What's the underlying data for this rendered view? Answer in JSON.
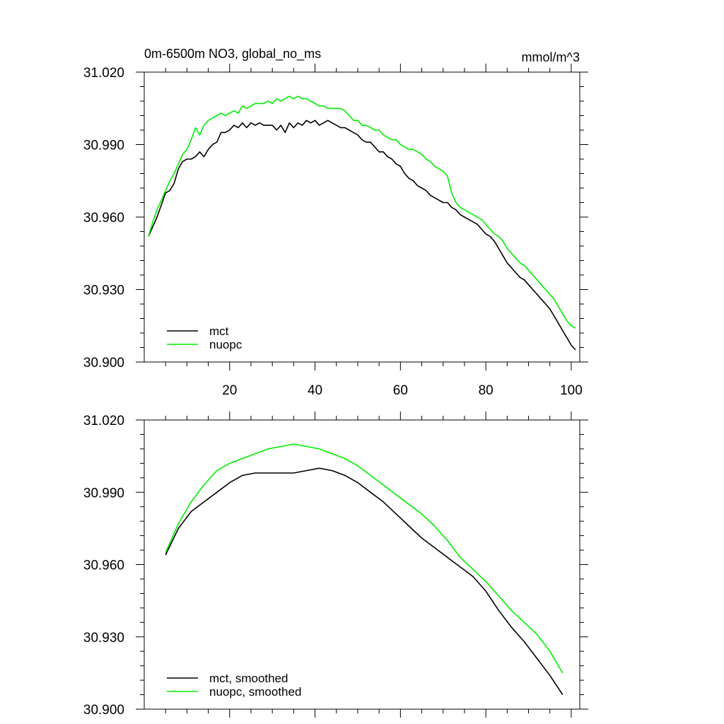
{
  "page": {
    "title": "0m-6500m NO3, global_no_ms",
    "units": "mmol/m^3"
  },
  "chart_data": [
    {
      "type": "line",
      "title": "0m-6500m NO3, global_no_ms",
      "units_label": "mmol/m^3",
      "xlabel": "",
      "ylabel": "",
      "xlim": [
        0,
        102
      ],
      "ylim": [
        30.9,
        31.02
      ],
      "xticks": [
        20,
        40,
        60,
        80,
        100
      ],
      "xtick_labels": [
        "20",
        "40",
        "60",
        "80",
        "100"
      ],
      "yticks": [
        30.9,
        30.93,
        30.96,
        30.99,
        31.02
      ],
      "ytick_labels": [
        "30.900",
        "30.930",
        "30.960",
        "30.990",
        "31.020"
      ],
      "show_xtick_labels": true,
      "legend_position": "bottom-left",
      "series": [
        {
          "name": "mct",
          "color": "#000000",
          "x": [
            1,
            2,
            3,
            4,
            5,
            6,
            7,
            8,
            9,
            10,
            11,
            12,
            13,
            14,
            15,
            16,
            17,
            18,
            19,
            20,
            21,
            22,
            23,
            24,
            25,
            26,
            27,
            28,
            29,
            30,
            31,
            32,
            33,
            34,
            35,
            36,
            37,
            38,
            39,
            40,
            41,
            42,
            43,
            44,
            45,
            46,
            47,
            48,
            49,
            50,
            51,
            52,
            53,
            54,
            55,
            56,
            57,
            58,
            59,
            60,
            61,
            62,
            63,
            64,
            65,
            66,
            67,
            68,
            69,
            70,
            71,
            72,
            73,
            74,
            75,
            76,
            77,
            78,
            79,
            80,
            81,
            82,
            83,
            84,
            85,
            86,
            87,
            88,
            89,
            90,
            91,
            92,
            93,
            94,
            95,
            96,
            97,
            98,
            99,
            100,
            101
          ],
          "y": [
            30.952,
            30.956,
            30.96,
            30.965,
            30.97,
            30.971,
            30.974,
            30.98,
            30.983,
            30.984,
            30.984,
            30.985,
            30.987,
            30.985,
            30.988,
            30.99,
            30.991,
            30.995,
            30.995,
            30.996,
            30.998,
            30.997,
            30.999,
            30.997,
            30.999,
            30.998,
            30.999,
            30.998,
            30.998,
            30.998,
            30.996,
            30.998,
            30.995,
            30.999,
            30.997,
            30.999,
            30.998,
            31.0,
            30.999,
            31.0,
            30.998,
            30.999,
            31.0,
            30.999,
            30.998,
            30.997,
            30.997,
            30.996,
            30.995,
            30.994,
            30.992,
            30.991,
            30.991,
            30.989,
            30.987,
            30.987,
            30.985,
            30.984,
            30.982,
            30.981,
            30.978,
            30.976,
            30.975,
            30.973,
            30.972,
            30.971,
            30.969,
            30.968,
            30.967,
            30.966,
            30.966,
            30.964,
            30.963,
            30.961,
            30.96,
            30.959,
            30.958,
            30.957,
            30.955,
            30.953,
            30.952,
            30.95,
            30.947,
            30.944,
            30.941,
            30.939,
            30.937,
            30.935,
            30.934,
            30.932,
            30.93,
            30.928,
            30.926,
            30.924,
            30.922,
            30.919,
            30.916,
            30.913,
            30.91,
            30.907,
            30.905
          ]
        },
        {
          "name": "nuopc",
          "color": "#00ee00",
          "x": [
            1,
            2,
            3,
            4,
            5,
            6,
            7,
            8,
            9,
            10,
            11,
            12,
            13,
            14,
            15,
            16,
            17,
            18,
            19,
            20,
            21,
            22,
            23,
            24,
            25,
            26,
            27,
            28,
            29,
            30,
            31,
            32,
            33,
            34,
            35,
            36,
            37,
            38,
            39,
            40,
            41,
            42,
            43,
            44,
            45,
            46,
            47,
            48,
            49,
            50,
            51,
            52,
            53,
            54,
            55,
            56,
            57,
            58,
            59,
            60,
            61,
            62,
            63,
            64,
            65,
            66,
            67,
            68,
            69,
            70,
            71,
            72,
            73,
            74,
            75,
            76,
            77,
            78,
            79,
            80,
            81,
            82,
            83,
            84,
            85,
            86,
            87,
            88,
            89,
            90,
            91,
            92,
            93,
            94,
            95,
            96,
            97,
            98,
            99,
            100,
            101
          ],
          "y": [
            30.952,
            30.958,
            30.963,
            30.967,
            30.971,
            30.975,
            30.978,
            30.982,
            30.986,
            30.988,
            30.992,
            30.997,
            30.994,
            30.998,
            31.0,
            31.001,
            31.002,
            31.003,
            31.002,
            31.003,
            31.004,
            31.003,
            31.006,
            31.005,
            31.006,
            31.007,
            31.007,
            31.007,
            31.008,
            31.007,
            31.009,
            31.008,
            31.009,
            31.01,
            31.009,
            31.01,
            31.009,
            31.009,
            31.008,
            31.007,
            31.006,
            31.006,
            31.005,
            31.005,
            31.005,
            31.005,
            31.004,
            31.002,
            31.0,
            31.0,
            30.998,
            30.998,
            30.997,
            30.996,
            30.996,
            30.994,
            30.993,
            30.992,
            30.992,
            30.99,
            30.989,
            30.988,
            30.988,
            30.987,
            30.986,
            30.984,
            30.983,
            30.981,
            30.98,
            30.979,
            30.977,
            30.97,
            30.966,
            30.964,
            30.963,
            30.962,
            30.961,
            30.96,
            30.959,
            30.957,
            30.955,
            30.953,
            30.952,
            30.95,
            30.947,
            30.945,
            30.943,
            30.941,
            30.94,
            30.938,
            30.936,
            30.934,
            30.932,
            30.93,
            30.928,
            30.926,
            30.923,
            30.92,
            30.917,
            30.915,
            30.914
          ]
        }
      ]
    },
    {
      "type": "line",
      "title": "",
      "xlabel": "",
      "ylabel": "",
      "xlim": [
        0,
        102
      ],
      "ylim": [
        30.9,
        31.02
      ],
      "xticks": [
        20,
        40,
        60,
        80,
        100
      ],
      "xtick_labels": [],
      "yticks": [
        30.9,
        30.93,
        30.96,
        30.99,
        31.02
      ],
      "ytick_labels": [
        "30.900",
        "30.930",
        "30.960",
        "30.990",
        "31.020"
      ],
      "show_xtick_labels": false,
      "legend_position": "bottom-left",
      "series": [
        {
          "name": "mct, smoothed",
          "color": "#000000",
          "x": [
            5,
            8,
            11,
            14,
            17,
            20,
            23,
            26,
            29,
            32,
            35,
            38,
            41,
            44,
            47,
            50,
            53,
            56,
            59,
            62,
            65,
            68,
            71,
            74,
            77,
            80,
            83,
            86,
            89,
            92,
            95,
            98
          ],
          "y": [
            30.964,
            30.975,
            30.982,
            30.986,
            30.99,
            30.994,
            30.997,
            30.998,
            30.998,
            30.998,
            30.998,
            30.999,
            31.0,
            30.999,
            30.997,
            30.994,
            30.99,
            30.986,
            30.981,
            30.976,
            30.971,
            30.967,
            30.963,
            30.959,
            30.955,
            30.949,
            30.941,
            30.934,
            30.928,
            30.921,
            30.914,
            30.906
          ]
        },
        {
          "name": "nuopc, smoothed",
          "color": "#00ee00",
          "x": [
            5,
            8,
            11,
            14,
            17,
            20,
            23,
            26,
            29,
            32,
            35,
            38,
            41,
            44,
            47,
            50,
            53,
            56,
            59,
            62,
            65,
            68,
            71,
            74,
            77,
            80,
            83,
            86,
            89,
            92,
            95,
            98
          ],
          "y": [
            30.965,
            30.977,
            30.986,
            30.993,
            30.999,
            31.002,
            31.004,
            31.006,
            31.008,
            31.009,
            31.01,
            31.009,
            31.008,
            31.006,
            31.004,
            31.001,
            30.997,
            30.993,
            30.989,
            30.985,
            30.981,
            30.976,
            30.97,
            30.963,
            30.958,
            30.953,
            30.947,
            30.941,
            30.936,
            30.931,
            30.924,
            30.915
          ]
        }
      ]
    }
  ]
}
